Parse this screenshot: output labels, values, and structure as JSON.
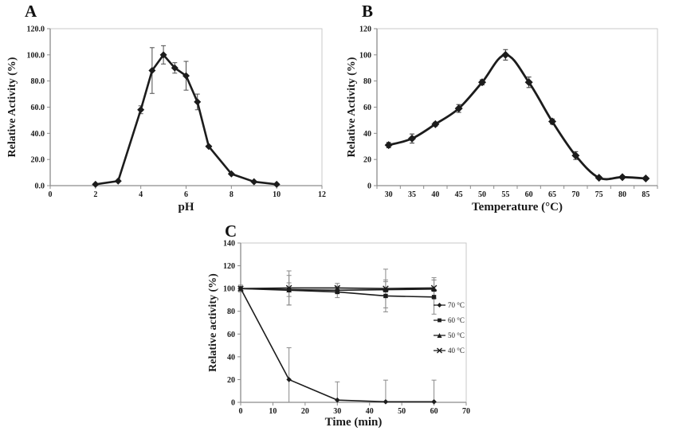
{
  "figure": {
    "background": "#ffffff",
    "panel_labels": [
      "A",
      "B",
      "C"
    ]
  },
  "colors": {
    "line": "#1c1c1c",
    "marker": "#1c1c1c",
    "text": "#1a1a1a",
    "axis_line": "#8c8c8c",
    "plot_border": "#c9c9c9"
  },
  "chart_data": [
    {
      "panel_label": "A",
      "type": "line",
      "xlabel": "pH",
      "ylabel": "Relative Activity (%)",
      "x_axis_type": "linear",
      "x": [
        2,
        3,
        4,
        4.5,
        5,
        5.5,
        6,
        6.5,
        7,
        8,
        9,
        10
      ],
      "xlim": [
        0,
        12
      ],
      "xticks": [
        0,
        2,
        4,
        6,
        8,
        10,
        12
      ],
      "ylim": [
        0,
        120
      ],
      "yticks": [
        0,
        20,
        40,
        60,
        80,
        100,
        120
      ],
      "ytick_labels": [
        "0.0",
        "20.0",
        "40.0",
        "60.0",
        "80.0",
        "100.0",
        "120.0"
      ],
      "smooth": false,
      "err_color": "#4d4d4d",
      "series": [
        {
          "name": "relative activity",
          "marker": "diamond",
          "values": [
            1,
            3.5,
            58,
            88,
            100,
            90,
            84,
            64,
            30,
            9,
            3,
            1
          ],
          "err": [
            0,
            0,
            3,
            17.5,
            7,
            4,
            11,
            6,
            0,
            0,
            0,
            0
          ]
        }
      ]
    },
    {
      "panel_label": "B",
      "type": "line",
      "xlabel": "Temperature (°C)",
      "ylabel": "Relative Activity (%)",
      "x_axis_type": "category",
      "x": [
        "30",
        "35",
        "40",
        "45",
        "50",
        "55",
        "60",
        "65",
        "70",
        "75",
        "80",
        "85"
      ],
      "ylim": [
        0,
        120
      ],
      "yticks": [
        0,
        20,
        40,
        60,
        80,
        100,
        120
      ],
      "ytick_labels": [
        "0",
        "20",
        "40",
        "60",
        "80",
        "100",
        "120"
      ],
      "smooth": true,
      "err_color": "#333333",
      "series": [
        {
          "name": "relative activity",
          "marker": "diamond",
          "values": [
            31,
            36,
            47,
            59,
            79,
            100,
            79,
            49,
            23,
            6,
            6.5,
            5.5
          ],
          "err": [
            2,
            3.5,
            1.5,
            3,
            2,
            4,
            4,
            2,
            3,
            1,
            1,
            1
          ]
        }
      ]
    },
    {
      "panel_label": "C",
      "type": "line",
      "xlabel": "Time (min)",
      "ylabel": "Relative activity (%)",
      "x_axis_type": "linear",
      "x": [
        0,
        15,
        30,
        45,
        60
      ],
      "xlim": [
        0,
        70
      ],
      "xticks": [
        0,
        10,
        20,
        30,
        40,
        50,
        60,
        70
      ],
      "ylim": [
        0,
        140
      ],
      "yticks": [
        0,
        20,
        40,
        60,
        80,
        100,
        120,
        140
      ],
      "ytick_labels": [
        "0",
        "20",
        "40",
        "60",
        "80",
        "100",
        "120",
        "140"
      ],
      "smooth": false,
      "err_color": "#8a8a8a",
      "legend": {
        "position": "inside-right",
        "items": [
          "70 °C",
          "60 °C",
          "50 °C",
          "40 °C"
        ]
      },
      "series": [
        {
          "name": "70 °C",
          "marker": "diamond",
          "values": [
            100,
            20,
            2,
            0.5,
            0.5
          ],
          "err": [
            2,
            28,
            16,
            19,
            19
          ]
        },
        {
          "name": "60 °C",
          "marker": "square",
          "values": [
            100,
            98.5,
            97,
            93.5,
            92.5
          ],
          "err": [
            3,
            13,
            5,
            14,
            15
          ]
        },
        {
          "name": "50 °C",
          "marker": "triangle",
          "values": [
            100,
            99,
            98.5,
            99,
            99.5
          ],
          "err": [
            0,
            6,
            3,
            7,
            8
          ]
        },
        {
          "name": "40 °C",
          "marker": "x",
          "values": [
            100,
            100.5,
            100.5,
            100,
            100.5
          ],
          "err": [
            0,
            15,
            4,
            17,
            9
          ]
        }
      ]
    }
  ]
}
